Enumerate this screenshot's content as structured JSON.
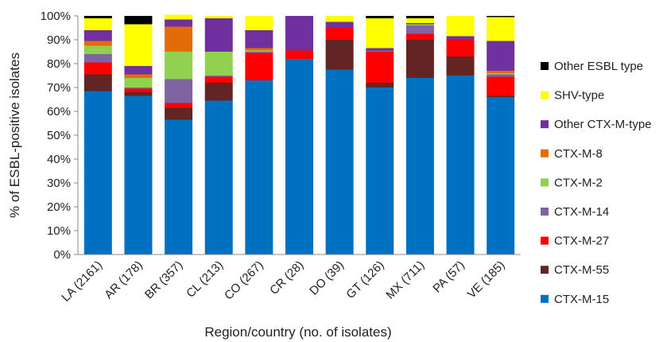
{
  "chart_data": {
    "type": "bar",
    "stacked": true,
    "percent": true,
    "xlabel": "Region/country  (no. of isolates)",
    "ylabel": "% of ESBL-positive isolates",
    "ylim": [
      0,
      100
    ],
    "yticks": [
      "0%",
      "10%",
      "20%",
      "30%",
      "40%",
      "50%",
      "60%",
      "70%",
      "80%",
      "90%",
      "100%"
    ],
    "ytick_values": [
      0,
      10,
      20,
      30,
      40,
      50,
      60,
      70,
      80,
      90,
      100
    ],
    "grid": false,
    "legend_position": "right",
    "categories": [
      "LA (2161)",
      "AR (178)",
      "BR (357)",
      "CL (213)",
      "CO (267)",
      "CR (28)",
      "DO (39)",
      "GT (126)",
      "MX (711)",
      "PA (57)",
      "VE (185)"
    ],
    "series": [
      {
        "name": "CTX-M-15",
        "color": "#0070C0",
        "values": [
          68.5,
          66.5,
          56.5,
          64.5,
          73,
          82,
          77.5,
          70,
          74,
          75,
          66
        ]
      },
      {
        "name": "CTX-M-55",
        "color": "#632523",
        "values": [
          7,
          1.5,
          5,
          7.5,
          0,
          0,
          12.5,
          2,
          16,
          8,
          0.5
        ]
      },
      {
        "name": "CTX-M-27",
        "color": "#FF0000",
        "values": [
          5,
          1.5,
          2,
          2.5,
          11.5,
          3.5,
          5,
          13,
          2.5,
          7,
          8
        ]
      },
      {
        "name": "CTX-M-14",
        "color": "#8064A2",
        "values": [
          3.5,
          0.5,
          10,
          0.5,
          0.5,
          0,
          0,
          0.5,
          3.5,
          0,
          1
        ]
      },
      {
        "name": "CTX-M-2",
        "color": "#92D050",
        "values": [
          3.5,
          4,
          11.5,
          10,
          0.5,
          0,
          0,
          0,
          0.5,
          0,
          0.5
        ]
      },
      {
        "name": "CTX-M-8",
        "color": "#E36C09",
        "values": [
          2,
          1.5,
          10.5,
          0,
          1,
          0,
          0,
          0,
          0,
          0,
          1
        ]
      },
      {
        "name": "Other CTX-M-type",
        "color": "#7030A0",
        "values": [
          4.5,
          3.5,
          3,
          14,
          7.5,
          14.5,
          2.5,
          1,
          0.5,
          1.5,
          12.5
        ]
      },
      {
        "name": "SHV-type",
        "color": "#FFFF00",
        "values": [
          5,
          17.5,
          2,
          1,
          6,
          0,
          2.5,
          12.5,
          2,
          8.5,
          10
        ]
      },
      {
        "name": "Other ESBL type",
        "color": "#000000",
        "values": [
          1,
          3.5,
          0,
          0,
          0,
          0,
          0,
          1,
          1,
          0,
          0.5
        ]
      }
    ],
    "legend_order": [
      "Other ESBL type",
      "SHV-type",
      "Other CTX-M-type",
      "CTX-M-8",
      "CTX-M-2",
      "CTX-M-14",
      "CTX-M-27",
      "CTX-M-55",
      "CTX-M-15"
    ]
  }
}
